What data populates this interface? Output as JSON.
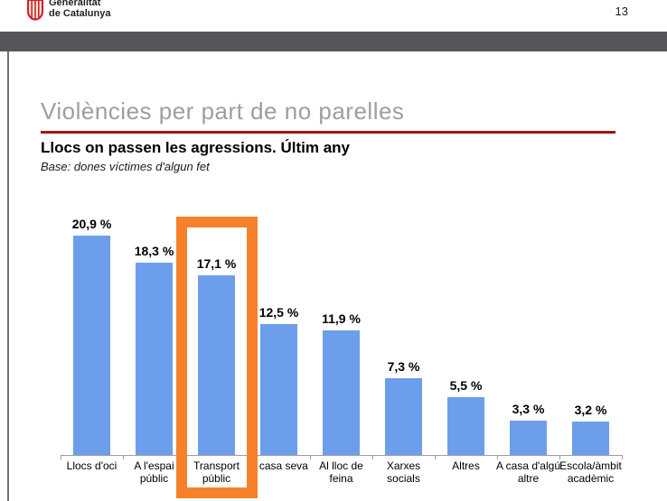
{
  "page": {
    "number": "13"
  },
  "logo": {
    "line1": "Generalitat",
    "line2": "de Catalunya"
  },
  "header": {
    "title": "Violències per part de no parelles",
    "subtitle": "Llocs on passen les agressions. Últim any",
    "base_note": "Base: dones víctimes d'algun fet"
  },
  "colors": {
    "bar": "#6d9eeb",
    "highlight": "#f5822b",
    "title_rule": "#a51117",
    "header_bar": "#56565a",
    "title_text": "#9e9e9e",
    "axis": "#9e9e9e"
  },
  "chart_data": {
    "type": "bar",
    "title": "Llocs on passen les agressions. Últim any",
    "categories": [
      "Llocs d'oci",
      "A l'espai públic",
      "Transport públic",
      "A casa seva",
      "Al lloc de feina",
      "Xarxes socials",
      "Altres",
      "A casa d'algú altre",
      "Escola/àmbit acadèmic"
    ],
    "category_lines": [
      [
        "Llocs d'oci"
      ],
      [
        "A l'espai",
        "públic"
      ],
      [
        "Transport",
        "públic"
      ],
      [
        "A casa seva"
      ],
      [
        "Al lloc de",
        "feina"
      ],
      [
        "Xarxes",
        "socials"
      ],
      [
        "Altres"
      ],
      [
        "A casa d'algú",
        "altre"
      ],
      [
        "Escola/àmbit",
        "acadèmic"
      ]
    ],
    "values": [
      20.9,
      18.3,
      17.1,
      12.5,
      11.9,
      7.3,
      5.5,
      3.3,
      3.2
    ],
    "value_labels": [
      "20,9 %",
      "18,3 %",
      "17,1 %",
      "12,5 %",
      "11,9 %",
      "7,3 %",
      "5,5 %",
      "3,3 %",
      "3,2 %"
    ],
    "unit": "%",
    "highlight_index": 2,
    "highlighted_category": "Transport públic",
    "ylim": [
      0,
      22
    ],
    "grid": false,
    "legend": false,
    "xlabel": "",
    "ylabel": ""
  }
}
